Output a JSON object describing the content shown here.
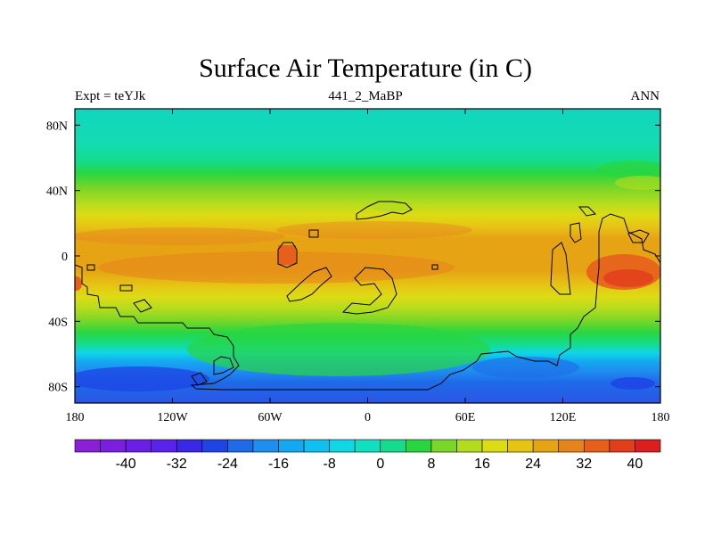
{
  "title": "Surface Air Temperature (in C)",
  "subtitle_left": "Expt = teYJk",
  "subtitle_center": "441_2_MaBP",
  "subtitle_right": "ANN",
  "map": {
    "y_ticks": [
      {
        "label": "80N",
        "lat": 80
      },
      {
        "label": "40N",
        "lat": 40
      },
      {
        "label": "0",
        "lat": 0
      },
      {
        "label": "40S",
        "lat": -40
      },
      {
        "label": "80S",
        "lat": -80
      }
    ],
    "x_ticks": [
      {
        "label": "180",
        "lon": -180
      },
      {
        "label": "120W",
        "lon": -120
      },
      {
        "label": "60W",
        "lon": -60
      },
      {
        "label": "0",
        "lon": 0
      },
      {
        "label": "60E",
        "lon": 60
      },
      {
        "label": "120E",
        "lon": 120
      },
      {
        "label": "180",
        "lon": 180
      }
    ],
    "lat_range": [
      -90,
      90
    ],
    "lon_range": [
      -180,
      180
    ]
  },
  "colorbar": {
    "colors": [
      "#8a1fd6",
      "#7a1ee0",
      "#6a1ee6",
      "#5a22ea",
      "#3a28e6",
      "#1e44e6",
      "#1e6ae8",
      "#1e8ef0",
      "#14a8f2",
      "#10c0f0",
      "#10d6e6",
      "#10e0c0",
      "#14dc8c",
      "#2ad640",
      "#7ad628",
      "#b4dc1e",
      "#dcdc14",
      "#e6c414",
      "#e6a414",
      "#e6841c",
      "#e6601c",
      "#e23e1c",
      "#dc1e1e"
    ],
    "labels": [
      "-40",
      "-32",
      "-24",
      "-16",
      "-8",
      "0",
      "8",
      "16",
      "24",
      "32",
      "40"
    ]
  }
}
